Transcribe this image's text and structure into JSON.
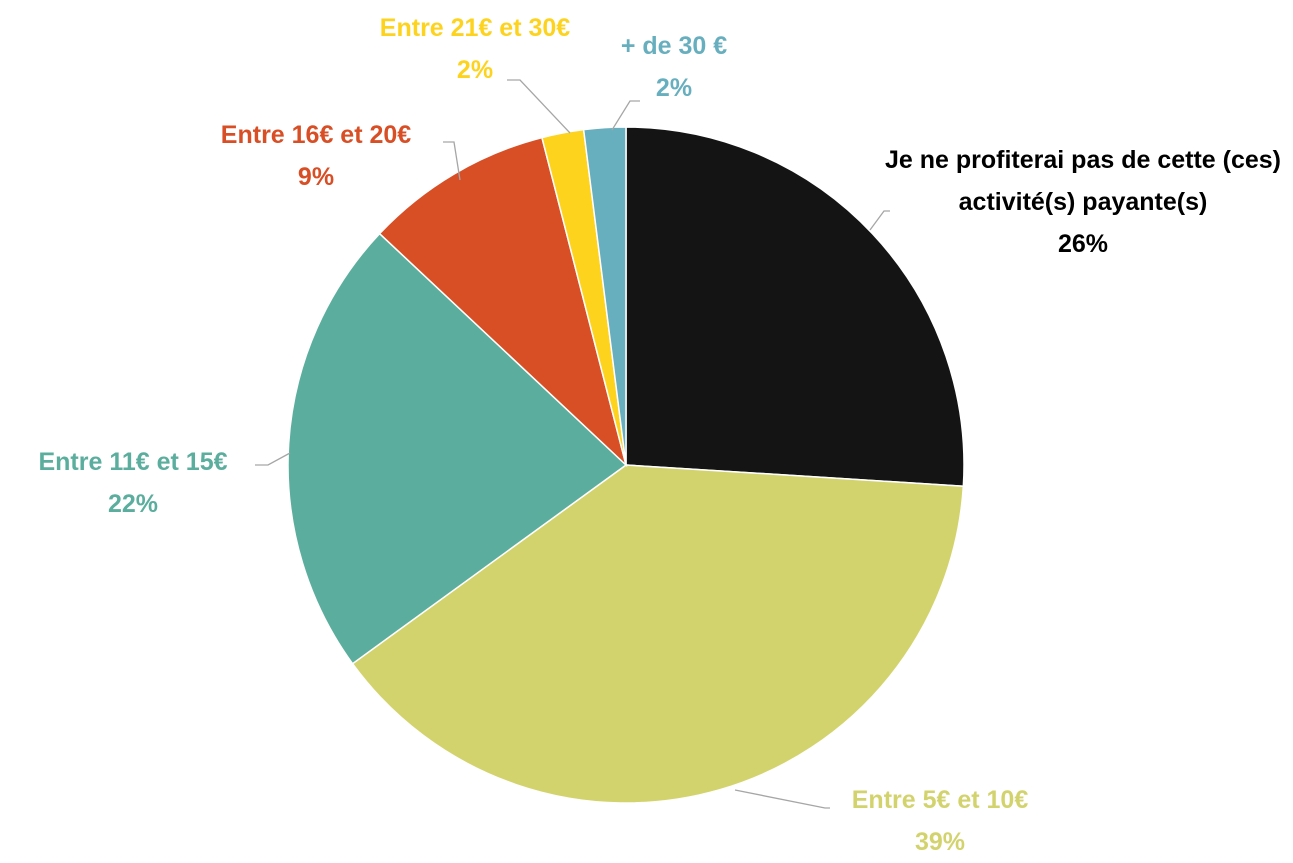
{
  "chart_data": {
    "type": "pie",
    "categories": [
      "Je ne profiterai pas de cette (ces) activité(s) payante(s)",
      "Entre 5€ et 10€",
      "Entre 11€ et 15€",
      "Entre 16€ et 20€",
      "Entre 21€ et 30€",
      "+ de 30 €"
    ],
    "values": [
      26,
      39,
      22,
      9,
      2,
      2
    ],
    "value_labels": [
      "26%",
      "39%",
      "22%",
      "9%",
      "2%",
      "2%"
    ],
    "colors": [
      "#141414",
      "#d3d36e",
      "#5bae9d",
      "#d84e25",
      "#fdd31e",
      "#67afbe"
    ]
  }
}
